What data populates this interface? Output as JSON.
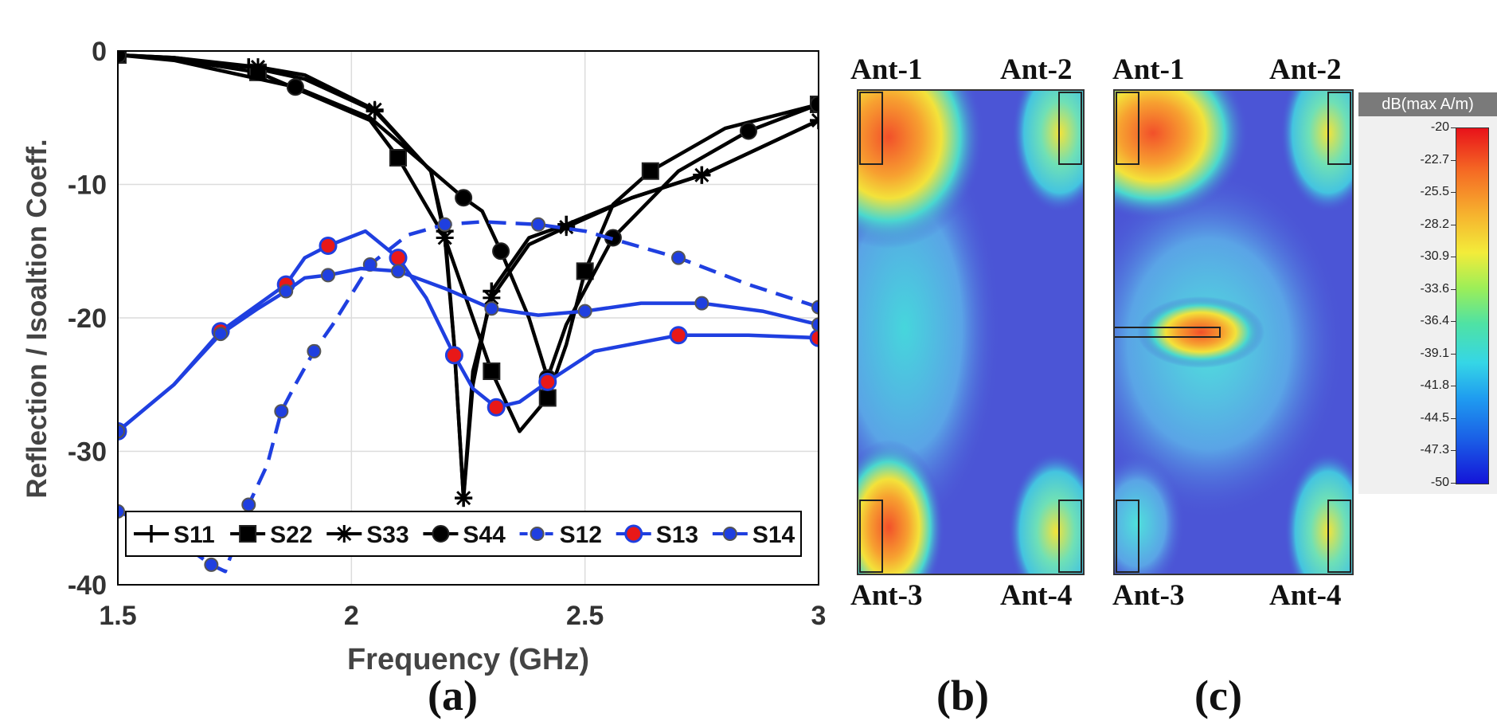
{
  "chart_data": {
    "type": "line",
    "xlabel": "Frequency (GHz)",
    "ylabel": "Reflection / Isoaltion Coeff.",
    "xlim": [
      1.5,
      3
    ],
    "ylim": [
      -40,
      0
    ],
    "xticks": [
      "1.5",
      "2",
      "2.5",
      "3"
    ],
    "yticks": [
      "0",
      "-10",
      "-20",
      "-30",
      "-40"
    ],
    "grid": true,
    "legend_position": "bottom",
    "series": [
      {
        "name": "S11",
        "color": "#000000",
        "marker": "plus",
        "dash": false,
        "x": [
          1.5,
          1.62,
          1.78,
          1.9,
          2.05,
          2.17,
          2.2,
          2.22,
          2.24,
          2.26,
          2.3,
          2.38,
          2.46,
          2.6,
          2.75,
          3.0
        ],
        "y": [
          -0.3,
          -0.5,
          -1.2,
          -2.1,
          -4.5,
          -9.0,
          -13.5,
          -22.0,
          -33.5,
          -25.0,
          -18.0,
          -14.0,
          -13.0,
          -11.0,
          -9.3,
          -5.2
        ]
      },
      {
        "name": "S22",
        "color": "#000000",
        "marker": "square",
        "dash": false,
        "x": [
          1.5,
          1.62,
          1.8,
          2.04,
          2.1,
          2.2,
          2.3,
          2.36,
          2.42,
          2.46,
          2.5,
          2.56,
          2.64,
          2.8,
          3.0
        ],
        "y": [
          -0.3,
          -0.6,
          -1.6,
          -5.2,
          -8.0,
          -14.0,
          -24.0,
          -28.5,
          -26.0,
          -22.0,
          -16.5,
          -11.5,
          -9.0,
          -5.8,
          -4.0
        ]
      },
      {
        "name": "S33",
        "color": "#000000",
        "marker": "star",
        "dash": false,
        "x": [
          1.5,
          1.62,
          1.8,
          1.9,
          2.05,
          2.17,
          2.2,
          2.22,
          2.24,
          2.26,
          2.3,
          2.38,
          2.46,
          2.6,
          2.75,
          3.0
        ],
        "y": [
          -0.3,
          -0.5,
          -1.2,
          -1.8,
          -4.4,
          -9.0,
          -14.0,
          -22.0,
          -33.5,
          -24.0,
          -18.5,
          -14.5,
          -13.2,
          -11.0,
          -9.3,
          -5.2
        ]
      },
      {
        "name": "S44",
        "color": "#000000",
        "marker": "circle",
        "dash": false,
        "x": [
          1.5,
          1.62,
          1.88,
          2.04,
          2.24,
          2.28,
          2.32,
          2.38,
          2.42,
          2.46,
          2.56,
          2.7,
          2.85,
          3.0
        ],
        "y": [
          -0.3,
          -0.7,
          -2.7,
          -5.0,
          -11.0,
          -12.0,
          -15.0,
          -20.0,
          -24.5,
          -20.5,
          -14.0,
          -9.0,
          -6.0,
          -4.0
        ]
      },
      {
        "name": "S12",
        "color": "#1f3fe0",
        "marker": "dot",
        "dash": true,
        "x": [
          1.5,
          1.6,
          1.7,
          1.73,
          1.78,
          1.82,
          1.85,
          1.88,
          1.92,
          1.96,
          2.04,
          2.12,
          2.2,
          2.28,
          2.4,
          2.5,
          2.7,
          2.85,
          3.0
        ],
        "y": [
          -34.5,
          -36.0,
          -38.5,
          -39.0,
          -34.0,
          -31.0,
          -27.0,
          -25.0,
          -22.5,
          -20.5,
          -16.0,
          -13.8,
          -13.0,
          -12.8,
          -13.0,
          -13.5,
          -15.5,
          -17.5,
          -19.2
        ]
      },
      {
        "name": "S13",
        "color": "#1f3fe0",
        "marker": "red-circle",
        "dash": false,
        "x": [
          1.5,
          1.62,
          1.72,
          1.8,
          1.86,
          1.9,
          1.95,
          2.03,
          2.1,
          2.16,
          2.22,
          2.26,
          2.31,
          2.36,
          2.42,
          2.52,
          2.7,
          2.85,
          3.0
        ],
        "y": [
          -28.5,
          -25.0,
          -21.0,
          -19.0,
          -17.5,
          -15.5,
          -14.6,
          -13.5,
          -15.5,
          -18.5,
          -22.8,
          -25.3,
          -26.7,
          -26.3,
          -24.8,
          -22.5,
          -21.3,
          -21.3,
          -21.5
        ]
      },
      {
        "name": "S14",
        "color": "#1f3fe0",
        "marker": "dot",
        "dash": false,
        "x": [
          1.5,
          1.62,
          1.72,
          1.8,
          1.86,
          1.9,
          1.95,
          2.02,
          2.1,
          2.2,
          2.3,
          2.4,
          2.5,
          2.62,
          2.75,
          2.88,
          3.0
        ],
        "y": [
          -28.5,
          -25.0,
          -21.2,
          -19.3,
          -18.0,
          -17.0,
          -16.8,
          -16.3,
          -16.5,
          -17.8,
          -19.3,
          -19.8,
          -19.5,
          -18.9,
          -18.9,
          -19.5,
          -20.5
        ]
      }
    ]
  },
  "panels": {
    "a": "(a)",
    "b": "(b)",
    "c": "(c)"
  },
  "antenna_labels": {
    "ant1": "Ant-1",
    "ant2": "Ant-2",
    "ant3": "Ant-3",
    "ant4": "Ant-4"
  },
  "colorbar": {
    "title": "dB(max A/m)",
    "ticks": [
      "-20",
      "-22.7",
      "-25.5",
      "-28.2",
      "-30.9",
      "-33.6",
      "-36.4",
      "-39.1",
      "-41.8",
      "-44.5",
      "-47.3",
      "-50"
    ]
  },
  "colors": {
    "accent_blue": "#1f3fe0",
    "marker_red": "#e81818",
    "field_blue": "#4b55d6",
    "field_red": "#f2502a"
  }
}
